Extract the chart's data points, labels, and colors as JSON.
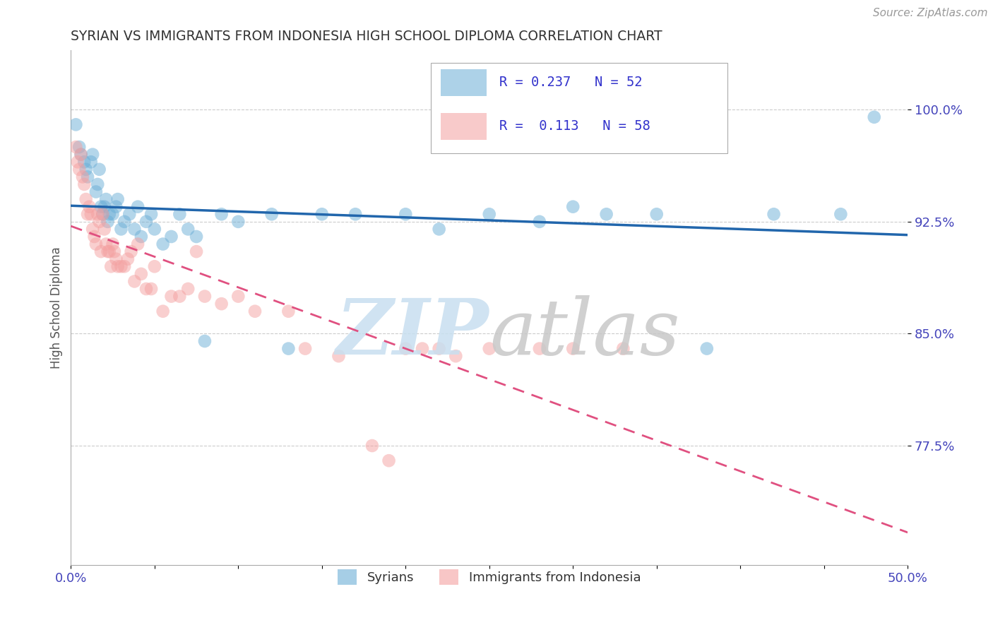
{
  "title": "SYRIAN VS IMMIGRANTS FROM INDONESIA HIGH SCHOOL DIPLOMA CORRELATION CHART",
  "source": "Source: ZipAtlas.com",
  "ylabel": "High School Diploma",
  "xlim": [
    0.0,
    0.5
  ],
  "ylim": [
    0.695,
    1.04
  ],
  "xticks": [
    0.0,
    0.05,
    0.1,
    0.15,
    0.2,
    0.25,
    0.3,
    0.35,
    0.4,
    0.45,
    0.5
  ],
  "xticklabels": [
    "0.0%",
    "",
    "",
    "",
    "",
    "",
    "",
    "",
    "",
    "",
    "50.0%"
  ],
  "yticks_right": [
    0.775,
    0.85,
    0.925,
    1.0
  ],
  "ytick_labels_right": [
    "77.5%",
    "85.0%",
    "92.5%",
    "100.0%"
  ],
  "R_blue": 0.237,
  "N_blue": 52,
  "R_pink": 0.113,
  "N_pink": 58,
  "blue_color": "#6baed6",
  "pink_color": "#f4a0a0",
  "blue_line_color": "#2166ac",
  "pink_line_color": "#e05080",
  "legend_label_blue": "Syrians",
  "legend_label_pink": "Immigrants from Indonesia",
  "blue_scatter_x": [
    0.003,
    0.005,
    0.006,
    0.008,
    0.009,
    0.01,
    0.012,
    0.013,
    0.015,
    0.016,
    0.017,
    0.018,
    0.019,
    0.02,
    0.021,
    0.022,
    0.023,
    0.025,
    0.027,
    0.028,
    0.03,
    0.032,
    0.035,
    0.038,
    0.04,
    0.042,
    0.045,
    0.048,
    0.05,
    0.055,
    0.06,
    0.065,
    0.07,
    0.075,
    0.08,
    0.09,
    0.1,
    0.12,
    0.13,
    0.15,
    0.17,
    0.2,
    0.22,
    0.25,
    0.28,
    0.3,
    0.32,
    0.35,
    0.38,
    0.42,
    0.46,
    0.48
  ],
  "blue_scatter_y": [
    0.99,
    0.975,
    0.97,
    0.965,
    0.96,
    0.955,
    0.965,
    0.97,
    0.945,
    0.95,
    0.96,
    0.935,
    0.93,
    0.935,
    0.94,
    0.925,
    0.93,
    0.93,
    0.935,
    0.94,
    0.92,
    0.925,
    0.93,
    0.92,
    0.935,
    0.915,
    0.925,
    0.93,
    0.92,
    0.91,
    0.915,
    0.93,
    0.92,
    0.915,
    0.845,
    0.93,
    0.925,
    0.93,
    0.84,
    0.93,
    0.93,
    0.93,
    0.92,
    0.93,
    0.925,
    0.935,
    0.93,
    0.93,
    0.84,
    0.93,
    0.93,
    0.995
  ],
  "pink_scatter_x": [
    0.003,
    0.004,
    0.005,
    0.006,
    0.007,
    0.008,
    0.009,
    0.01,
    0.011,
    0.012,
    0.013,
    0.014,
    0.015,
    0.016,
    0.017,
    0.018,
    0.019,
    0.02,
    0.021,
    0.022,
    0.023,
    0.024,
    0.025,
    0.026,
    0.027,
    0.028,
    0.03,
    0.032,
    0.034,
    0.036,
    0.038,
    0.04,
    0.042,
    0.045,
    0.048,
    0.05,
    0.055,
    0.06,
    0.065,
    0.07,
    0.075,
    0.08,
    0.09,
    0.1,
    0.11,
    0.13,
    0.14,
    0.16,
    0.18,
    0.19,
    0.2,
    0.21,
    0.22,
    0.23,
    0.25,
    0.28,
    0.3,
    0.33
  ],
  "pink_scatter_y": [
    0.975,
    0.965,
    0.96,
    0.97,
    0.955,
    0.95,
    0.94,
    0.93,
    0.935,
    0.93,
    0.92,
    0.915,
    0.91,
    0.93,
    0.925,
    0.905,
    0.93,
    0.92,
    0.91,
    0.905,
    0.905,
    0.895,
    0.91,
    0.905,
    0.9,
    0.895,
    0.895,
    0.895,
    0.9,
    0.905,
    0.885,
    0.91,
    0.89,
    0.88,
    0.88,
    0.895,
    0.865,
    0.875,
    0.875,
    0.88,
    0.905,
    0.875,
    0.87,
    0.875,
    0.865,
    0.865,
    0.84,
    0.835,
    0.775,
    0.765,
    0.84,
    0.84,
    0.84,
    0.835,
    0.84,
    0.84,
    0.84,
    0.84
  ]
}
